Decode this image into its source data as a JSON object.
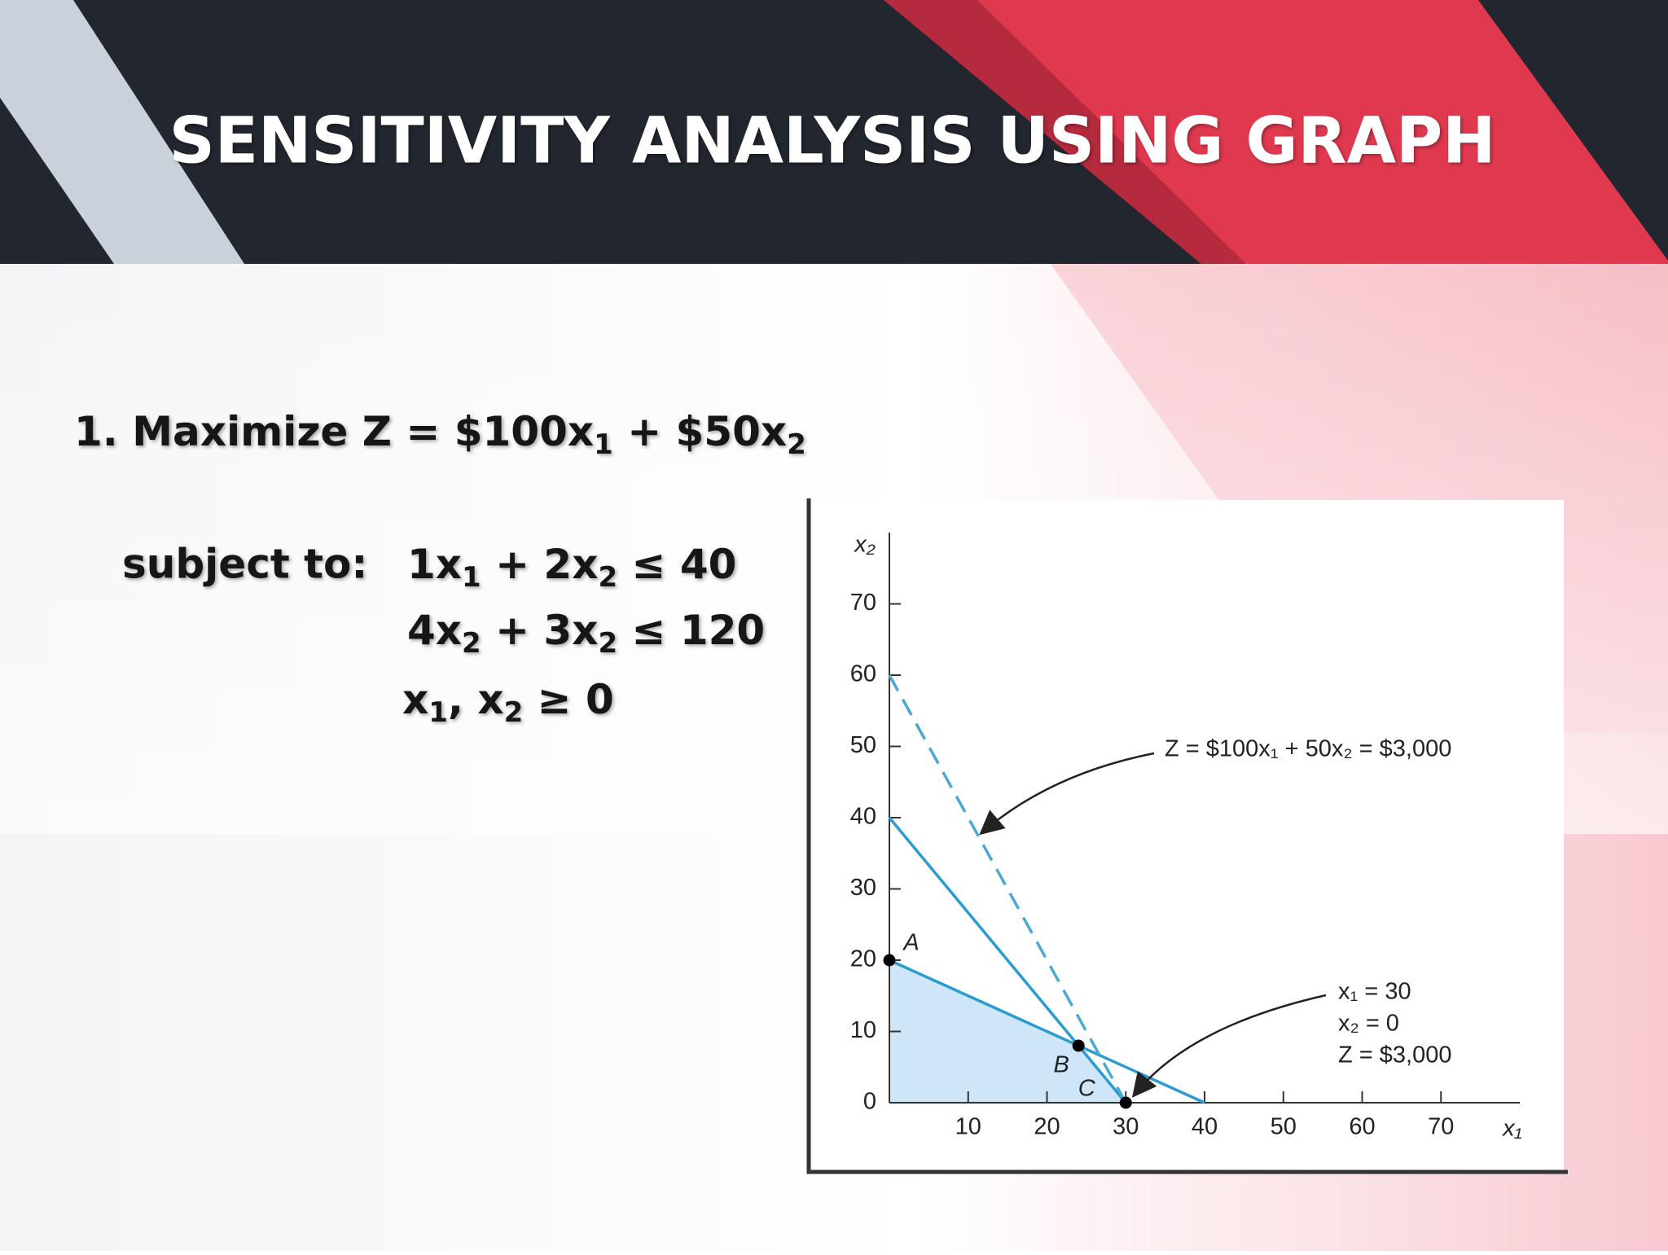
{
  "slide": {
    "title": "SENSITIVITY ANALYSIS USING GRAPH",
    "objective": [
      "1. Maximize Z = $100x",
      "1",
      " + $50x",
      "2"
    ],
    "subject_label": "subject to:",
    "constraints": [
      [
        "1x",
        "1",
        " + 2x",
        "2",
        " ≤ 40"
      ],
      [
        "4x",
        "2",
        " + 3x",
        "2",
        " ≤ 120"
      ],
      [
        "x",
        "1",
        ", x",
        "2",
        " ≥ 0"
      ]
    ]
  },
  "chart_data": {
    "type": "line",
    "xlabel": "x₁",
    "ylabel": "x₂",
    "xlim": [
      0,
      80
    ],
    "ylim": [
      0,
      80
    ],
    "xticks": [
      10,
      20,
      30,
      40,
      50,
      60,
      70
    ],
    "yticks": [
      0,
      10,
      20,
      30,
      40,
      50,
      60,
      70
    ],
    "series": [
      {
        "x": [
          0,
          40
        ],
        "values": [
          20,
          0
        ],
        "color": "#2b9bd0",
        "dashed": false
      },
      {
        "x": [
          0,
          30
        ],
        "values": [
          40,
          0
        ],
        "color": "#2b9bd0",
        "dashed": false
      },
      {
        "x": [
          0,
          30
        ],
        "values": [
          60,
          0
        ],
        "color": "#4aa9d4",
        "dashed": true
      }
    ],
    "region": {
      "x": [
        0,
        0,
        24,
        30
      ],
      "values": [
        0,
        20,
        8,
        0
      ],
      "color": "#cfe6f8"
    },
    "points": [
      {
        "label": "A",
        "x": 0,
        "y": 20
      },
      {
        "label": "B",
        "x": 24,
        "y": 8
      },
      {
        "label": "C",
        "x": 30,
        "y": 0
      }
    ],
    "annotations": {
      "objective_line": "Z = $100x₁ + 50x₂ = $3,000",
      "solution": [
        "x₁  = 30",
        "x₂  = 0",
        "Z  = $3,000"
      ]
    }
  }
}
